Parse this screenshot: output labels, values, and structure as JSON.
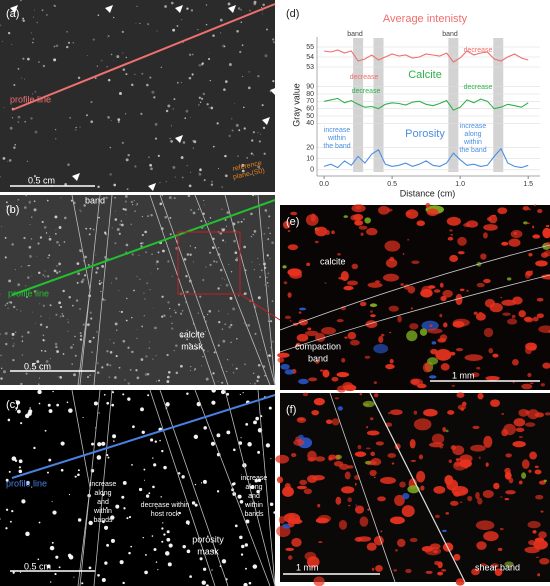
{
  "panels": {
    "a": {
      "label": "(a)",
      "profile": "profile line",
      "scale": "0.5 cm",
      "reference": [
        "reference",
        "plane (S0)"
      ]
    },
    "b": {
      "label": "(b)",
      "band": "band",
      "profile": "profile line",
      "mask": [
        "calcite",
        "mask"
      ],
      "scale": "0.5 cm"
    },
    "c": {
      "label": "(c)",
      "profile": "profile line",
      "left": [
        "increase",
        "along",
        "and",
        "within",
        "bands"
      ],
      "middle": [
        "decrease within",
        "host rock"
      ],
      "right": [
        "increase",
        "along",
        "and",
        "within",
        "bands"
      ],
      "mask": [
        "porosity",
        "mask"
      ],
      "scale": "0.5 cm"
    },
    "d": {
      "label": "(d)"
    },
    "e": {
      "label": "(e)",
      "calcite": "calcite",
      "band": [
        "compaction",
        "band"
      ],
      "scale": "1 mm"
    },
    "f": {
      "label": "(f)",
      "band": "shear band",
      "scale": "1 mm"
    }
  },
  "chart_data": [
    {
      "type": "line",
      "title": "Average intenisty",
      "color": "#ef6f6c",
      "x": [
        0,
        0.05,
        0.1,
        0.15,
        0.2,
        0.25,
        0.3,
        0.35,
        0.4,
        0.45,
        0.5,
        0.55,
        0.6,
        0.65,
        0.7,
        0.75,
        0.8,
        0.85,
        0.9,
        0.95,
        1.0,
        1.05,
        1.1,
        1.15,
        1.2,
        1.25,
        1.3,
        1.35,
        1.4,
        1.45,
        1.5
      ],
      "values": [
        54.6,
        54.5,
        54.7,
        54.4,
        54.6,
        53.6,
        53.8,
        54.2,
        53.7,
        54.0,
        54.3,
        54.1,
        54.2,
        53.9,
        54.0,
        54.3,
        54.2,
        54.1,
        54.4,
        53.5,
        53.9,
        54.6,
        54.2,
        54.4,
        54.5,
        53.8,
        53.6,
        54.0,
        54.3,
        53.9,
        53.7
      ],
      "ylim": [
        52.5,
        56
      ],
      "yticks": [
        55,
        54,
        53
      ],
      "annotations": [
        "band",
        "band",
        "decrease",
        "decrease"
      ],
      "bands": [
        0.25,
        0.4,
        0.95,
        1.28
      ]
    },
    {
      "type": "line",
      "title": "Calcite",
      "color": "#2db24a",
      "ylabel": "Gray value",
      "x": [
        0,
        0.05,
        0.1,
        0.15,
        0.2,
        0.25,
        0.3,
        0.35,
        0.4,
        0.45,
        0.5,
        0.55,
        0.6,
        0.65,
        0.7,
        0.75,
        0.8,
        0.85,
        0.9,
        0.95,
        1.0,
        1.05,
        1.1,
        1.15,
        1.2,
        1.25,
        1.3,
        1.35,
        1.4,
        1.45,
        1.5
      ],
      "values": [
        70,
        72,
        74,
        68,
        71,
        66,
        62,
        63,
        60,
        66,
        68,
        67,
        65,
        69,
        70,
        66,
        64,
        67,
        71,
        58,
        62,
        72,
        68,
        73,
        70,
        60,
        62,
        66,
        64,
        62,
        68
      ],
      "ylim": [
        35,
        95
      ],
      "yticks": [
        90,
        80,
        70,
        60,
        50,
        40
      ],
      "annotations": [
        "decrease",
        "decrease"
      ]
    },
    {
      "type": "line",
      "title": "Porosity",
      "color": "#4a8fe0",
      "xlabel": "Distance (cm)",
      "x": [
        0,
        0.05,
        0.1,
        0.15,
        0.2,
        0.25,
        0.3,
        0.35,
        0.4,
        0.45,
        0.5,
        0.55,
        0.6,
        0.65,
        0.7,
        0.75,
        0.8,
        0.85,
        0.9,
        0.95,
        1.0,
        1.05,
        1.1,
        1.15,
        1.2,
        1.25,
        1.3,
        1.35,
        1.4,
        1.45,
        1.5
      ],
      "values": [
        3,
        5,
        2,
        8,
        4,
        12,
        6,
        14,
        18,
        5,
        3,
        4,
        6,
        3,
        5,
        8,
        4,
        3,
        6,
        15,
        9,
        4,
        5,
        3,
        4,
        12,
        19,
        6,
        3,
        2,
        4
      ],
      "ylim": [
        -2,
        25
      ],
      "yticks": [
        20,
        10,
        0
      ],
      "xlim": [
        -0.03,
        1.55
      ],
      "xticks": [
        {
          "value": 0,
          "label": "0.0"
        },
        0.5,
        {
          "value": 1,
          "label": "1.0"
        },
        1.5
      ],
      "annotations": [
        [
          "increase",
          "within",
          "the band"
        ],
        [
          "increase",
          "along",
          "within",
          "the band"
        ]
      ]
    }
  ]
}
